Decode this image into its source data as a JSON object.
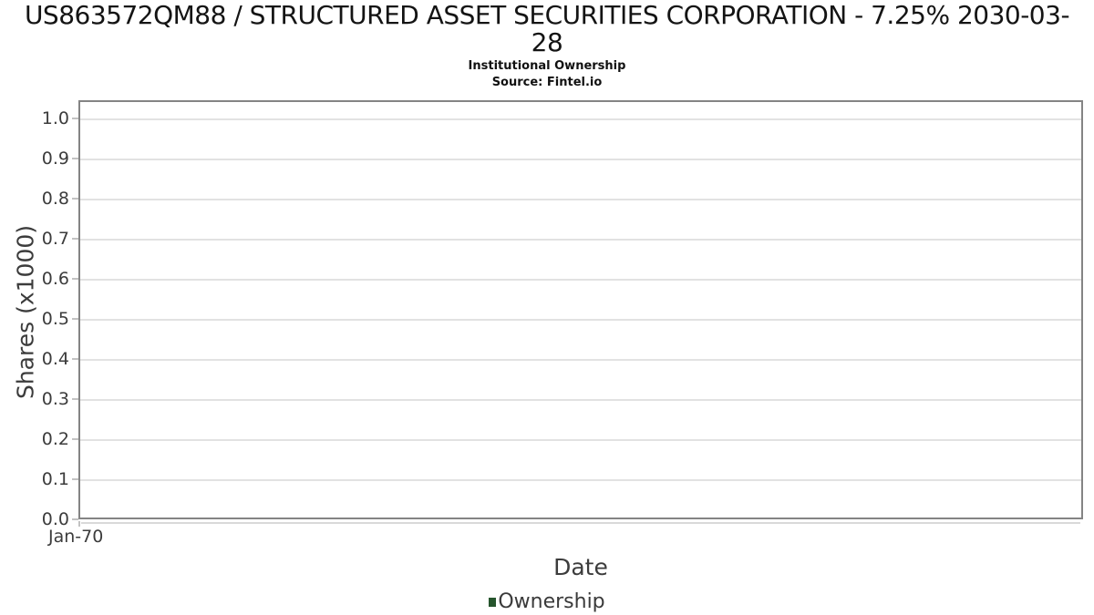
{
  "header": {
    "title_line1": "US863572QM88 / STRUCTURED ASSET SECURITIES CORPORATION - 7.25% 2030-03-",
    "title_line2": "28",
    "subtitle": "Institutional Ownership",
    "source": "Source: Fintel.io"
  },
  "chart_data": {
    "type": "line",
    "title": "US863572QM88 / STRUCTURED ASSET SECURITIES CORPORATION - 7.25% 2030-03-28",
    "subtitle": "Institutional Ownership",
    "source": "Source: Fintel.io",
    "xlabel": "Date",
    "ylabel": "Shares (x1000)",
    "xticks": [
      "Jan-70"
    ],
    "yticks": [
      0.0,
      0.1,
      0.2,
      0.3,
      0.4,
      0.5,
      0.6,
      0.7,
      0.8,
      0.9,
      1.0
    ],
    "ylim": [
      0.0,
      1.045
    ],
    "xlim_note": "no date range shown; single tick Jan-70 at left edge",
    "grid": "horizontal",
    "legend": {
      "position": "bottom-center",
      "entries": [
        {
          "label": "Ownership",
          "marker": "square",
          "color": "#26552d"
        }
      ]
    },
    "series": [
      {
        "name": "Ownership",
        "x": [],
        "y": [],
        "note": "chart is empty - no data points plotted"
      }
    ]
  },
  "colors": {
    "background": "#ffffff",
    "plot_border": "#848484",
    "gridline": "#e2e2e2",
    "tick_mark": "#c2c2c2",
    "tick_text": "#3c3c3c",
    "axis_label_text": "#3c3c3c",
    "title_text": "#141414",
    "legend_marker_green": "#26552d"
  }
}
